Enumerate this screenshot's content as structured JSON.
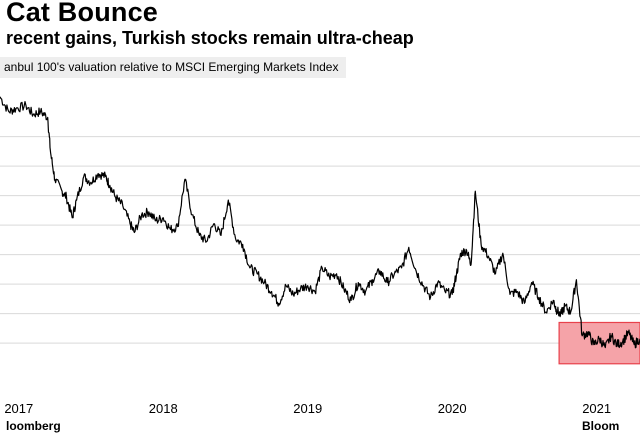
{
  "title": "Cat Bounce",
  "subtitle": "recent gains, Turkish stocks remain ultra-cheap",
  "legend_label": "anbul 100's valuation relative to MSCI Emerging Markets Index",
  "source": "loomberg",
  "brand": "Bloom",
  "colors": {
    "line": "#000000",
    "gridline": "#d9d9d9",
    "highlight_fill": "#f5a3a8",
    "highlight_stroke": "#e8414b",
    "legend_bg": "#eeeeee"
  },
  "chart_data": {
    "type": "line",
    "title": "Cat Bounce",
    "xlabel": "",
    "ylabel": "",
    "grid": true,
    "legend": "top-left",
    "x_ticks": [
      "2017",
      "2018",
      "2019",
      "2020",
      "2021"
    ],
    "x_tick_values": [
      2017,
      2018,
      2019,
      2020,
      2021
    ],
    "xlim": [
      2016.87,
      2021.3
    ],
    "ylim": [
      0,
      10
    ],
    "gridlines": [
      1.25,
      2.25,
      3.25,
      4.25,
      5.25,
      6.25,
      7.25,
      8.25
    ],
    "series": [
      {
        "name": "Istanbul 100 relative valuation",
        "x": [
          2016.87,
          2016.93,
          2016.98,
          2017.05,
          2017.1,
          2017.15,
          2017.2,
          2017.22,
          2017.25,
          2017.3,
          2017.33,
          2017.37,
          2017.4,
          2017.45,
          2017.5,
          2017.55,
          2017.6,
          2017.63,
          2017.67,
          2017.72,
          2017.77,
          2017.8,
          2017.85,
          2017.9,
          2017.95,
          2018.0,
          2018.05,
          2018.1,
          2018.15,
          2018.2,
          2018.25,
          2018.3,
          2018.35,
          2018.4,
          2018.45,
          2018.5,
          2018.55,
          2018.6,
          2018.65,
          2018.7,
          2018.75,
          2018.8,
          2018.85,
          2018.9,
          2018.95,
          2019.0,
          2019.05,
          2019.1,
          2019.15,
          2019.2,
          2019.25,
          2019.3,
          2019.35,
          2019.4,
          2019.45,
          2019.5,
          2019.55,
          2019.6,
          2019.65,
          2019.7,
          2019.75,
          2019.8,
          2019.85,
          2019.9,
          2019.95,
          2020.0,
          2020.03,
          2020.06,
          2020.1,
          2020.13,
          2020.16,
          2020.2,
          2020.25,
          2020.3,
          2020.35,
          2020.4,
          2020.45,
          2020.5,
          2020.55,
          2020.6,
          2020.65,
          2020.7,
          2020.72,
          2020.75,
          2020.78,
          2020.82,
          2020.86,
          2020.9,
          2020.94,
          2020.98,
          2021.02,
          2021.06,
          2021.1,
          2021.14,
          2021.18,
          2021.22,
          2021.26,
          2021.3
        ],
        "y": [
          9.6,
          9.1,
          9.2,
          9.3,
          9.0,
          9.1,
          8.9,
          7.7,
          6.8,
          6.4,
          6.2,
          5.5,
          6.1,
          6.9,
          6.7,
          7.0,
          6.9,
          6.6,
          6.2,
          5.9,
          5.3,
          5.0,
          5.6,
          5.7,
          5.4,
          5.5,
          5.1,
          5.2,
          6.8,
          5.6,
          4.9,
          4.7,
          5.3,
          4.9,
          6.1,
          4.8,
          4.6,
          3.8,
          3.6,
          3.3,
          3.0,
          2.6,
          3.2,
          2.9,
          3.1,
          3.2,
          3.0,
          3.8,
          3.5,
          3.6,
          3.1,
          2.7,
          3.3,
          3.0,
          3.4,
          3.7,
          3.3,
          3.6,
          3.8,
          4.5,
          3.7,
          3.2,
          2.8,
          3.3,
          3.0,
          2.9,
          3.6,
          4.3,
          4.4,
          3.9,
          6.4,
          4.6,
          4.2,
          3.6,
          4.3,
          2.9,
          3.0,
          2.6,
          3.3,
          2.8,
          2.3,
          2.7,
          2.4,
          2.2,
          2.5,
          2.3,
          3.4,
          1.5,
          1.6,
          1.2,
          1.4,
          1.1,
          1.5,
          1.2,
          1.3,
          1.6,
          1.2,
          1.4
        ]
      }
    ],
    "highlight": {
      "x_range": [
        2020.74,
        2021.3
      ],
      "y_range": [
        0.55,
        1.95
      ]
    }
  }
}
